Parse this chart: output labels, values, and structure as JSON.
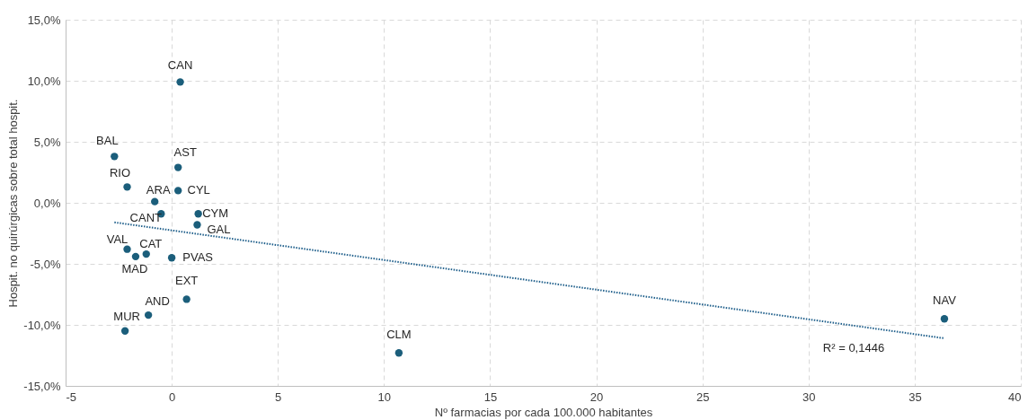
{
  "chart_data": {
    "type": "scatter",
    "xlabel": "Nº farmacias por cada 100.000 habitantes",
    "ylabel": "Hospit. no quirúrgicas sobre total hospit.",
    "xlim": [
      -5,
      40
    ],
    "xticks": [
      -5,
      0,
      5,
      10,
      15,
      20,
      25,
      30,
      35,
      40
    ],
    "ylim": [
      -15,
      15
    ],
    "yticks": [
      {
        "value": -15,
        "label": "-15,0%"
      },
      {
        "value": -10,
        "label": "-10,0%"
      },
      {
        "value": -5,
        "label": "-5,0%"
      },
      {
        "value": 0,
        "label": "0,0%"
      },
      {
        "value": 5,
        "label": "5,0%"
      },
      {
        "value": 10,
        "label": "10,0%"
      },
      {
        "value": 15,
        "label": "15,0%"
      }
    ],
    "grid": true,
    "series": [
      {
        "color": "#1b5e7b",
        "marker": "circle",
        "x": [
          0.4,
          -2.7,
          0.3,
          -2.1,
          0.3,
          -0.8,
          -0.5,
          1.25,
          1.2,
          -2.1,
          -1.2,
          -1.7,
          0.0,
          0.7,
          -1.1,
          -2.2,
          10.7,
          36.4
        ],
        "values": [
          9.9,
          3.8,
          2.9,
          1.3,
          1.0,
          0.1,
          -0.9,
          -0.9,
          -1.8,
          -3.8,
          -4.2,
          -4.4,
          -4.5,
          -7.9,
          -9.2,
          -10.5,
          -12.3,
          -9.5
        ]
      },
      {
        "type": "line",
        "line_style": "dotted",
        "color": "#1f5f8b",
        "x": [
          -2.7,
          36.4
        ],
        "values": [
          -1.6,
          -11.1
        ]
      }
    ],
    "annotations": [
      {
        "text": "CAN",
        "x": 0.4,
        "y": 9.9
      },
      {
        "text": "BAL",
        "x": -2.7,
        "y": 3.8
      },
      {
        "text": "AST",
        "x": 0.3,
        "y": 2.9
      },
      {
        "text": "RIO",
        "x": -2.1,
        "y": 1.3
      },
      {
        "text": "CYL",
        "x": 0.3,
        "y": 1.0
      },
      {
        "text": "ARA",
        "x": -0.8,
        "y": 0.1
      },
      {
        "text": "CANT",
        "x": -0.5,
        "y": -0.9
      },
      {
        "text": "CYM",
        "x": 1.25,
        "y": -0.9
      },
      {
        "text": "GAL",
        "x": 1.2,
        "y": -1.8
      },
      {
        "text": "VAL",
        "x": -2.1,
        "y": -3.8
      },
      {
        "text": "CAT",
        "x": -1.2,
        "y": -4.2
      },
      {
        "text": "MAD",
        "x": -1.7,
        "y": -4.4
      },
      {
        "text": "PVAS",
        "x": 0.0,
        "y": -4.5
      },
      {
        "text": "EXT",
        "x": 0.7,
        "y": -7.9
      },
      {
        "text": "AND",
        "x": -1.1,
        "y": -9.2
      },
      {
        "text": "MUR",
        "x": -2.2,
        "y": -10.5
      },
      {
        "text": "CLM",
        "x": 10.7,
        "y": -12.3
      },
      {
        "text": "NAV",
        "x": 36.4,
        "y": -9.5
      },
      "R² = 0,1446"
    ]
  }
}
